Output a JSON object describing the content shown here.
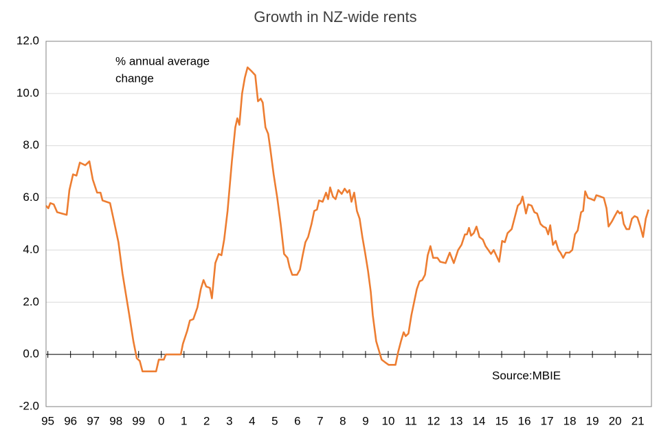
{
  "chart_data": {
    "type": "line",
    "title": "Growth in NZ-wide rents",
    "annotation": [
      "% annual average",
      "change"
    ],
    "source": "Source:MBIE",
    "xlim": [
      1994.92,
      2021.6
    ],
    "ylim": [
      -2,
      12
    ],
    "yticks": [
      {
        "value": -2,
        "label": "-2.0"
      },
      {
        "value": 0,
        "label": "0.0"
      },
      {
        "value": 2,
        "label": "2.0"
      },
      {
        "value": 4,
        "label": "4.0"
      },
      {
        "value": 6,
        "label": "6.0"
      },
      {
        "value": 8,
        "label": "8.0"
      },
      {
        "value": 10,
        "label": "10.0"
      },
      {
        "value": 12,
        "label": "12.0"
      }
    ],
    "xticks": [
      {
        "value": 1995,
        "label": "95"
      },
      {
        "value": 1996,
        "label": "96"
      },
      {
        "value": 1997,
        "label": "97"
      },
      {
        "value": 1998,
        "label": "98"
      },
      {
        "value": 1999,
        "label": "99"
      },
      {
        "value": 2000,
        "label": "0"
      },
      {
        "value": 2001,
        "label": "1"
      },
      {
        "value": 2002,
        "label": "2"
      },
      {
        "value": 2003,
        "label": "3"
      },
      {
        "value": 2004,
        "label": "4"
      },
      {
        "value": 2005,
        "label": "5"
      },
      {
        "value": 2006,
        "label": "6"
      },
      {
        "value": 2007,
        "label": "7"
      },
      {
        "value": 2008,
        "label": "8"
      },
      {
        "value": 2009,
        "label": "9"
      },
      {
        "value": 2010,
        "label": "10"
      },
      {
        "value": 2011,
        "label": "11"
      },
      {
        "value": 2012,
        "label": "12"
      },
      {
        "value": 2013,
        "label": "13"
      },
      {
        "value": 2014,
        "label": "14"
      },
      {
        "value": 2015,
        "label": "15"
      },
      {
        "value": 2016,
        "label": "16"
      },
      {
        "value": 2017,
        "label": "17"
      },
      {
        "value": 2018,
        "label": "18"
      },
      {
        "value": 2019,
        "label": "19"
      },
      {
        "value": 2020,
        "label": "20"
      },
      {
        "value": 2021,
        "label": "21"
      }
    ],
    "grid": true,
    "x": [
      1994.92,
      1995.02,
      1995.11,
      1995.26,
      1995.41,
      1995.62,
      1995.83,
      1995.95,
      1996.11,
      1996.26,
      1996.41,
      1996.65,
      1996.83,
      1996.98,
      1997.17,
      1997.32,
      1997.41,
      1997.74,
      1997.89,
      1998.11,
      1998.29,
      1998.44,
      1998.59,
      1998.77,
      1998.92,
      1999.05,
      1999.17,
      1999.77,
      1999.89,
      2000.11,
      2000.2,
      2000.86,
      2000.95,
      2001.14,
      2001.26,
      2001.41,
      2001.59,
      2001.74,
      2001.86,
      2001.98,
      2002.14,
      2002.23,
      2002.38,
      2002.53,
      2002.65,
      2002.77,
      2002.92,
      2003.11,
      2003.26,
      2003.35,
      2003.44,
      2003.56,
      2003.68,
      2003.8,
      2003.98,
      2004.14,
      2004.26,
      2004.38,
      2004.47,
      2004.59,
      2004.71,
      2004.8,
      2004.95,
      2005.11,
      2005.26,
      2005.41,
      2005.56,
      2005.65,
      2005.77,
      2005.98,
      2006.11,
      2006.23,
      2006.35,
      2006.47,
      2006.62,
      2006.74,
      2006.86,
      2006.95,
      2007.11,
      2007.26,
      2007.35,
      2007.44,
      2007.56,
      2007.68,
      2007.8,
      2007.95,
      2008.08,
      2008.2,
      2008.29,
      2008.38,
      2008.5,
      2008.62,
      2008.74,
      2008.86,
      2008.98,
      2009.11,
      2009.23,
      2009.32,
      2009.47,
      2009.59,
      2009.71,
      2009.86,
      2010.02,
      2010.32,
      2010.44,
      2010.56,
      2010.68,
      2010.77,
      2010.89,
      2011.02,
      2011.14,
      2011.26,
      2011.38,
      2011.5,
      2011.62,
      2011.74,
      2011.86,
      2011.98,
      2012.17,
      2012.29,
      2012.53,
      2012.71,
      2012.89,
      2013.08,
      2013.23,
      2013.38,
      2013.47,
      2013.56,
      2013.65,
      2013.77,
      2013.89,
      2014.02,
      2014.17,
      2014.29,
      2014.41,
      2014.53,
      2014.65,
      2014.89,
      2015.02,
      2015.14,
      2015.26,
      2015.44,
      2015.56,
      2015.71,
      2015.83,
      2015.92,
      2016.07,
      2016.17,
      2016.32,
      2016.44,
      2016.56,
      2016.71,
      2016.83,
      2016.95,
      2017.05,
      2017.14,
      2017.26,
      2017.38,
      2017.5,
      2017.59,
      2017.71,
      2017.83,
      2017.98,
      2018.11,
      2018.23,
      2018.35,
      2018.5,
      2018.59,
      2018.68,
      2018.8,
      2018.95,
      2019.08,
      2019.17,
      2019.35,
      2019.5,
      2019.62,
      2019.71,
      2019.86,
      2019.98,
      2020.11,
      2020.2,
      2020.29,
      2020.38,
      2020.5,
      2020.62,
      2020.74,
      2020.86,
      2020.98,
      2021.11,
      2021.23,
      2021.35,
      2021.47
    ],
    "series": [
      {
        "name": "% annual average change",
        "color": "#ed7d31",
        "values": [
          5.7,
          5.6,
          5.8,
          5.75,
          5.45,
          5.4,
          5.35,
          6.3,
          6.9,
          6.85,
          7.35,
          7.25,
          7.4,
          6.7,
          6.2,
          6.2,
          5.9,
          5.8,
          5.2,
          4.3,
          3.1,
          2.3,
          1.5,
          0.5,
          -0.15,
          -0.25,
          -0.65,
          -0.65,
          -0.2,
          -0.2,
          0,
          0,
          0.4,
          0.9,
          1.3,
          1.35,
          1.8,
          2.5,
          2.85,
          2.6,
          2.55,
          2.15,
          3.5,
          3.85,
          3.8,
          4.4,
          5.5,
          7.4,
          8.7,
          9.05,
          8.8,
          10,
          10.6,
          11,
          10.85,
          10.7,
          9.7,
          9.8,
          9.65,
          8.7,
          8.45,
          7.9,
          6.9,
          6,
          5,
          3.85,
          3.7,
          3.35,
          3.05,
          3.05,
          3.25,
          3.8,
          4.3,
          4.5,
          5,
          5.5,
          5.55,
          5.9,
          5.85,
          6.2,
          5.95,
          6.4,
          6.05,
          5.95,
          6.3,
          6.15,
          6.35,
          6.2,
          6.3,
          5.85,
          6.2,
          5.5,
          5.2,
          4.5,
          3.9,
          3.2,
          2.4,
          1.5,
          0.5,
          0.15,
          -0.2,
          -0.3,
          -0.4,
          -0.4,
          0.1,
          0.5,
          0.85,
          0.7,
          0.8,
          1.5,
          2,
          2.5,
          2.8,
          2.85,
          3.05,
          3.8,
          4.15,
          3.7,
          3.7,
          3.55,
          3.5,
          3.9,
          3.5,
          4,
          4.2,
          4.6,
          4.6,
          4.85,
          4.55,
          4.65,
          4.9,
          4.5,
          4.4,
          4.15,
          4,
          3.85,
          4,
          3.55,
          4.35,
          4.3,
          4.65,
          4.8,
          5.2,
          5.7,
          5.8,
          6.05,
          5.4,
          5.75,
          5.7,
          5.45,
          5.4,
          5,
          4.9,
          4.85,
          4.6,
          4.95,
          4.2,
          4.35,
          4,
          3.9,
          3.7,
          3.9,
          3.9,
          4,
          4.6,
          4.75,
          5.45,
          5.5,
          6.25,
          6,
          5.95,
          5.9,
          6.1,
          6.05,
          6,
          5.6,
          4.9,
          5.1,
          5.3,
          5.5,
          5.4,
          5.45,
          5,
          4.8,
          4.8,
          5.2,
          5.3,
          5.25,
          4.9,
          4.5,
          5.2,
          5.55
        ]
      }
    ]
  }
}
